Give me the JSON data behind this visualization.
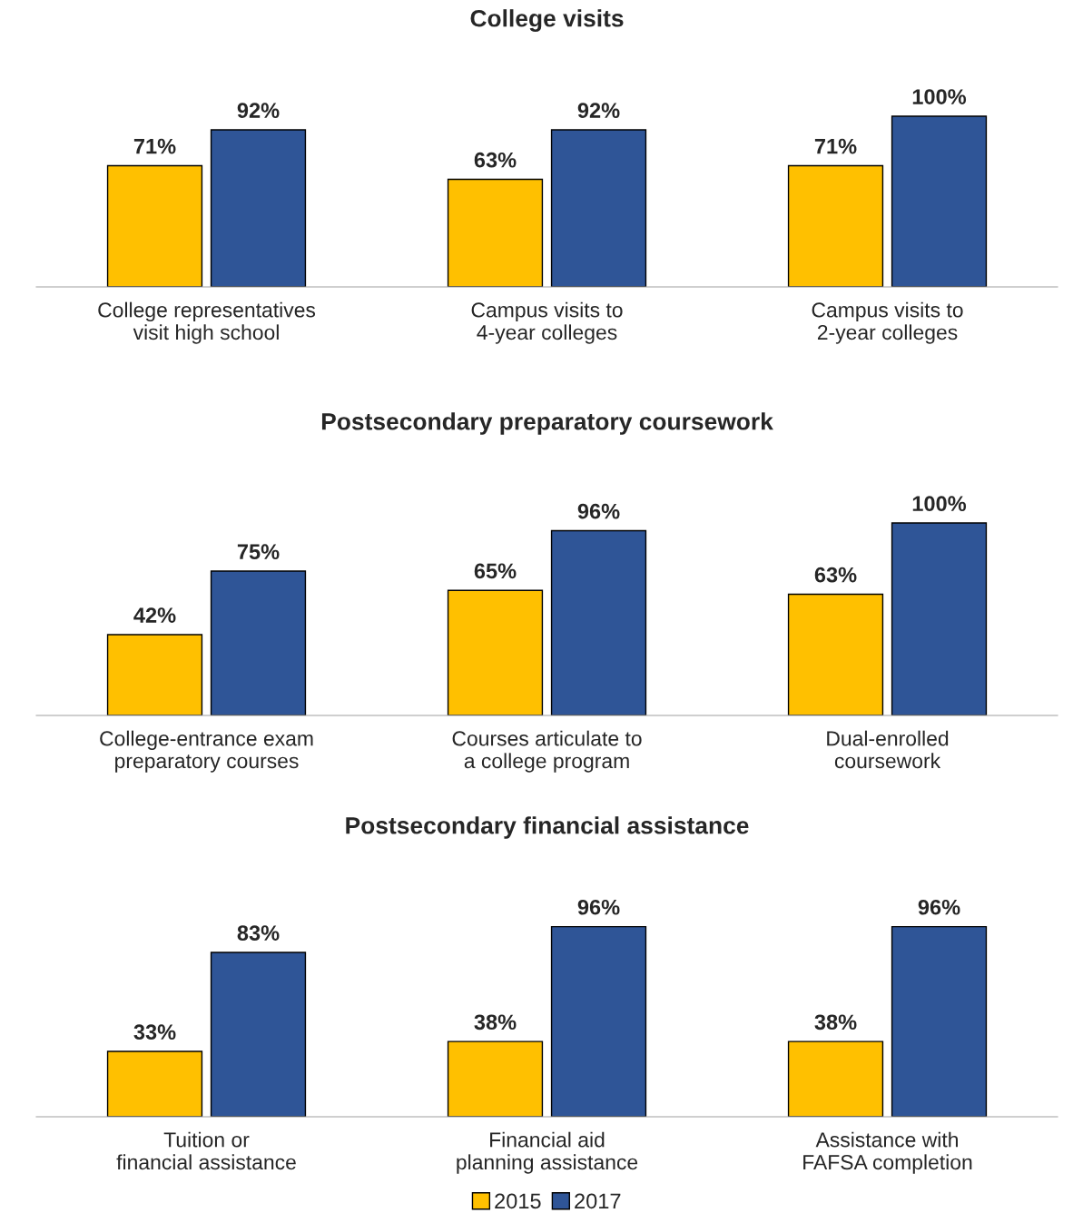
{
  "chart_data": [
    {
      "type": "bar",
      "title": "College visits",
      "categories": [
        "College representatives\nvisit high school",
        "Campus visits to\n4-year colleges",
        "Campus visits to\n2-year colleges"
      ],
      "series": [
        {
          "color": "#ffc000",
          "values": [
            71,
            63,
            71
          ],
          "value_labels": [
            "71%",
            "63%",
            "71%"
          ]
        },
        {
          "color": "#2f5597",
          "values": [
            92,
            92,
            100
          ],
          "value_labels": [
            "92%",
            "92%",
            "100%"
          ]
        }
      ]
    },
    {
      "type": "bar",
      "title": "Postsecondary preparatory coursework",
      "categories": [
        "College-entrance exam\npreparatory courses",
        "Courses articulate to\na college program",
        "Dual-enrolled\ncoursework"
      ],
      "series": [
        {
          "color": "#ffc000",
          "values": [
            42,
            65,
            63
          ],
          "value_labels": [
            "42%",
            "65%",
            "63%"
          ]
        },
        {
          "color": "#2f5597",
          "values": [
            75,
            96,
            100
          ],
          "value_labels": [
            "75%",
            "96%",
            "100%"
          ]
        }
      ]
    },
    {
      "type": "bar",
      "title": "Postsecondary financial assistance",
      "categories": [
        "Tuition or\nfinancial assistance",
        "Financial aid\nplanning assistance",
        "Assistance with\nFAFSA completion"
      ],
      "legend": "bottom",
      "series": [
        {
          "name": "2015",
          "color": "#ffc000",
          "values": [
            33,
            38,
            38
          ],
          "value_labels": [
            "33%",
            "38%",
            "38%"
          ]
        },
        {
          "name": "2017",
          "color": "#2f5597",
          "values": [
            83,
            96,
            96
          ],
          "value_labels": [
            "83%",
            "96%",
            "96%"
          ]
        }
      ]
    }
  ]
}
